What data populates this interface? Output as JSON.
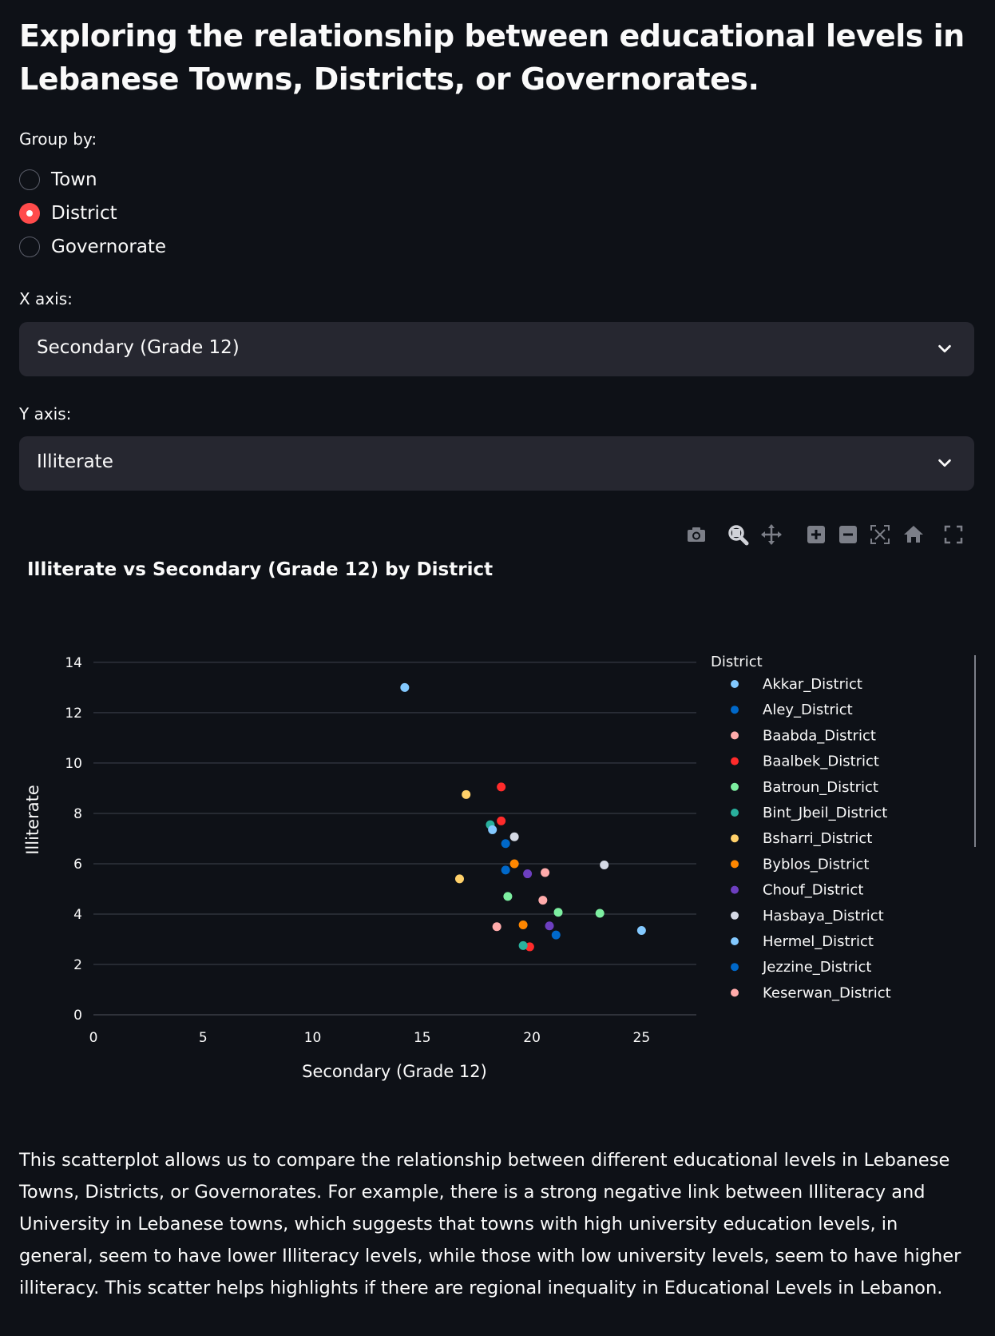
{
  "title": "Exploring the relationship between educational levels in Lebanese Towns, Districts, or Governorates.",
  "group_by": {
    "label": "Group by:",
    "options": [
      "Town",
      "District",
      "Governorate"
    ],
    "selected": "District"
  },
  "x_axis": {
    "label": "X axis:",
    "value": "Secondary (Grade 12)"
  },
  "y_axis": {
    "label": "Y axis:",
    "value": "Illiterate"
  },
  "toolbar": [
    "camera-icon",
    "zoom-icon",
    "pan-icon",
    "zoom-in-icon",
    "zoom-out-icon",
    "autoscale-icon",
    "reset-axes-icon",
    "fullscreen-icon"
  ],
  "chart_data": {
    "type": "scatter",
    "title": "Illiterate vs Secondary (Grade 12) by District",
    "xlabel": "Secondary (Grade 12)",
    "ylabel": "Illiterate",
    "xlim": [
      0,
      27.5
    ],
    "ylim": [
      0,
      14.6
    ],
    "xticks": [
      0,
      5,
      10,
      15,
      20,
      25
    ],
    "yticks": [
      0,
      2,
      4,
      6,
      8,
      10,
      12,
      14
    ],
    "grid": true,
    "legend_title": "District",
    "legend_position": "right",
    "series": [
      {
        "name": "Akkar_District",
        "color": "#83c9ff",
        "points": [
          [
            14.2,
            13.0
          ]
        ]
      },
      {
        "name": "Aley_District",
        "color": "#0068c9",
        "points": [
          [
            18.8,
            6.8
          ],
          [
            18.8,
            5.75
          ]
        ]
      },
      {
        "name": "Baabda_District",
        "color": "#ffabab",
        "points": [
          [
            20.6,
            5.65
          ],
          [
            20.5,
            4.55
          ],
          [
            18.4,
            3.5
          ]
        ]
      },
      {
        "name": "Baalbek_District",
        "color": "#ff2b2b",
        "points": [
          [
            18.6,
            9.05
          ],
          [
            18.6,
            7.7
          ],
          [
            19.9,
            2.7
          ]
        ]
      },
      {
        "name": "Batroun_District",
        "color": "#7defa1",
        "points": [
          [
            18.9,
            4.7
          ],
          [
            21.2,
            4.07
          ],
          [
            23.1,
            4.03
          ]
        ]
      },
      {
        "name": "Bint_Jbeil_District",
        "color": "#29b09d",
        "points": [
          [
            18.1,
            7.55
          ],
          [
            19.6,
            2.75
          ]
        ]
      },
      {
        "name": "Bsharri_District",
        "color": "#ffd16a",
        "points": [
          [
            17.0,
            8.75
          ],
          [
            16.7,
            5.4
          ]
        ]
      },
      {
        "name": "Byblos_District",
        "color": "#ff8700",
        "points": [
          [
            19.2,
            6.0
          ],
          [
            19.6,
            3.57
          ]
        ]
      },
      {
        "name": "Chouf_District",
        "color": "#6d3fc0",
        "points": [
          [
            19.8,
            5.6
          ],
          [
            20.8,
            3.53
          ]
        ]
      },
      {
        "name": "Hasbaya_District",
        "color": "#d5dae5",
        "points": [
          [
            19.2,
            7.07
          ],
          [
            23.3,
            5.95
          ]
        ]
      },
      {
        "name": "Hermel_District",
        "color": "#83c9ff",
        "points": [
          [
            18.2,
            7.35
          ],
          [
            25.0,
            3.35
          ]
        ]
      },
      {
        "name": "Jezzine_District",
        "color": "#0068c9",
        "points": [
          [
            21.1,
            3.17
          ]
        ]
      },
      {
        "name": "Keserwan_District",
        "color": "#ffabab",
        "points": []
      }
    ]
  },
  "description": "This scatterplot allows us to compare the relationship between different educational levels in Lebanese Towns, Districts, or Governorates. For example, there is a strong negative link between Illiteracy and University in Lebanese towns, which suggests that towns with high university education levels, in general, seem to have lower Illiteracy levels, while those with low university levels, seem to have higher illiteracy. This scatter helps highlights if there are regional inequality in Educational Levels in Lebanon."
}
